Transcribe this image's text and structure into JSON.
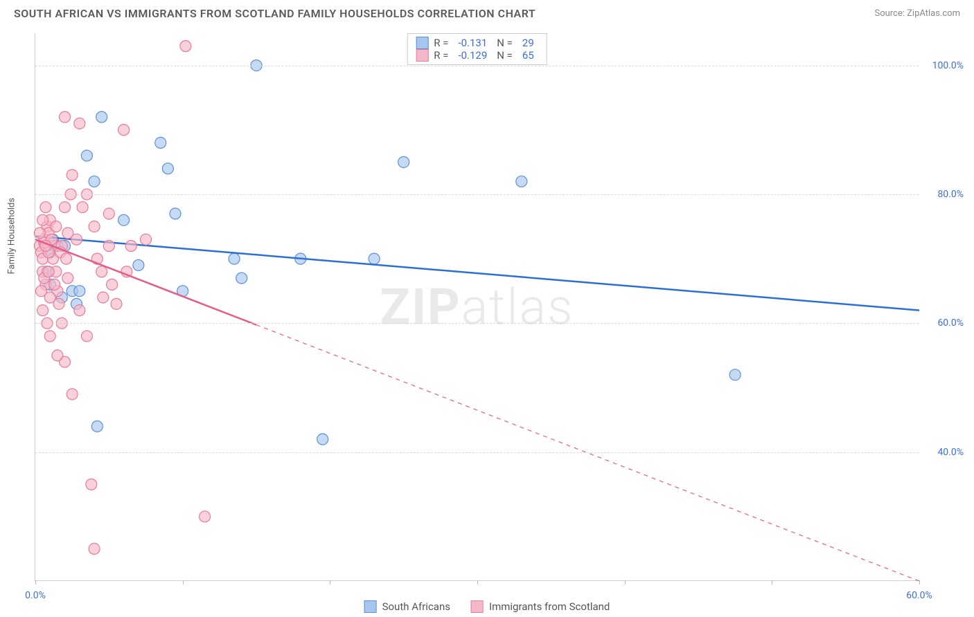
{
  "title": "SOUTH AFRICAN VS IMMIGRANTS FROM SCOTLAND FAMILY HOUSEHOLDS CORRELATION CHART",
  "source": "Source: ZipAtlas.com",
  "watermark_a": "ZIP",
  "watermark_b": "atlas",
  "y_axis_label": "Family Households",
  "chart": {
    "type": "scatter",
    "background_color": "#ffffff",
    "grid_color": "#d8d8d8",
    "axis_color": "#cfcfcf",
    "xlim": [
      0,
      60
    ],
    "ylim": [
      20,
      105
    ],
    "x_ticks": [
      0,
      10,
      20,
      30,
      40,
      50,
      60
    ],
    "x_tick_labels": [
      "0.0%",
      "",
      "",
      "",
      "",
      "",
      "60.0%"
    ],
    "y_ticks": [
      40,
      60,
      80,
      100
    ],
    "y_tick_labels": [
      "40.0%",
      "60.0%",
      "80.0%",
      "100.0%"
    ],
    "series": [
      {
        "name": "South Africans",
        "color_fill": "#a7c6ed",
        "color_stroke": "#5b8fd6",
        "marker_radius": 8,
        "marker_opacity": 0.65,
        "R_label": "R =",
        "R_value": "-0.131",
        "N_label": "N =",
        "N_value": "29",
        "trend": {
          "x1": 0,
          "y1": 73.5,
          "x2": 60,
          "y2": 62,
          "solid_until_x": 60,
          "color": "#2b6fd6",
          "width": 2.5
        },
        "points": [
          [
            1.2,
            73
          ],
          [
            1.5,
            72
          ],
          [
            1.0,
            66
          ],
          [
            1.8,
            64
          ],
          [
            2.0,
            72
          ],
          [
            1.0,
            71
          ],
          [
            0.8,
            68
          ],
          [
            2.5,
            65
          ],
          [
            4.5,
            92
          ],
          [
            3.5,
            86
          ],
          [
            4.0,
            82
          ],
          [
            6.0,
            76
          ],
          [
            8.5,
            88
          ],
          [
            9.0,
            84
          ],
          [
            9.5,
            77
          ],
          [
            7.0,
            69
          ],
          [
            10.0,
            65
          ],
          [
            13.5,
            70
          ],
          [
            14.0,
            67
          ],
          [
            15.0,
            100
          ],
          [
            18.0,
            70
          ],
          [
            19.5,
            42
          ],
          [
            23.0,
            70
          ],
          [
            25,
            85
          ],
          [
            33.0,
            82
          ],
          [
            47.5,
            52
          ],
          [
            4.2,
            44
          ],
          [
            2.8,
            63
          ],
          [
            3.0,
            65
          ]
        ]
      },
      {
        "name": "Immigrants from Scotland",
        "color_fill": "#f5b8c8",
        "color_stroke": "#e87a9a",
        "marker_radius": 8,
        "marker_opacity": 0.65,
        "R_label": "R =",
        "R_value": "-0.129",
        "N_label": "N =",
        "N_value": "65",
        "trend": {
          "x1": 0,
          "y1": 73,
          "x2": 60,
          "y2": 20,
          "solid_until_x": 15,
          "color": "#e85a88",
          "width": 2.5,
          "dash": "6,6"
        },
        "points": [
          [
            0.3,
            72
          ],
          [
            0.4,
            71
          ],
          [
            0.5,
            70
          ],
          [
            0.6,
            72.5
          ],
          [
            0.5,
            68
          ],
          [
            0.7,
            66
          ],
          [
            0.8,
            75
          ],
          [
            0.6,
            73
          ],
          [
            0.9,
            74
          ],
          [
            1.0,
            76
          ],
          [
            0.7,
            78
          ],
          [
            0.5,
            62
          ],
          [
            0.8,
            60
          ],
          [
            1.0,
            58
          ],
          [
            1.2,
            70
          ],
          [
            1.3,
            72
          ],
          [
            1.5,
            65
          ],
          [
            1.4,
            68
          ],
          [
            1.6,
            63
          ],
          [
            1.8,
            72
          ],
          [
            2.0,
            78
          ],
          [
            2.2,
            74
          ],
          [
            2.4,
            80
          ],
          [
            2.5,
            83
          ],
          [
            2.0,
            92
          ],
          [
            3.0,
            91
          ],
          [
            3.2,
            78
          ],
          [
            3.5,
            80
          ],
          [
            3.8,
            35
          ],
          [
            4.0,
            75
          ],
          [
            4.2,
            70
          ],
          [
            4.5,
            68
          ],
          [
            4.6,
            64
          ],
          [
            5.0,
            72
          ],
          [
            5.2,
            66
          ],
          [
            6.0,
            90
          ],
          [
            6.5,
            72
          ],
          [
            4.0,
            25
          ],
          [
            5.5,
            63
          ],
          [
            2.0,
            54
          ],
          [
            2.5,
            49
          ],
          [
            1.5,
            55
          ],
          [
            3.0,
            62
          ],
          [
            3.5,
            58
          ],
          [
            0.4,
            65
          ],
          [
            0.6,
            67
          ],
          [
            0.9,
            71
          ],
          [
            1.1,
            73
          ],
          [
            1.3,
            66
          ],
          [
            1.0,
            64
          ],
          [
            2.2,
            67
          ],
          [
            2.8,
            73
          ],
          [
            0.3,
            74
          ],
          [
            0.5,
            76
          ],
          [
            0.7,
            72
          ],
          [
            0.9,
            68
          ],
          [
            1.4,
            75
          ],
          [
            1.7,
            71
          ],
          [
            2.1,
            70
          ],
          [
            10.2,
            103
          ],
          [
            5.0,
            77
          ],
          [
            6.2,
            68
          ],
          [
            1.8,
            60
          ],
          [
            11.5,
            30
          ],
          [
            7.5,
            73
          ]
        ]
      }
    ]
  },
  "bottom_legend": [
    {
      "label": "South Africans",
      "fill": "#a7c6ed",
      "stroke": "#5b8fd6"
    },
    {
      "label": "Immigrants from Scotland",
      "fill": "#f5b8c8",
      "stroke": "#e87a9a"
    }
  ]
}
